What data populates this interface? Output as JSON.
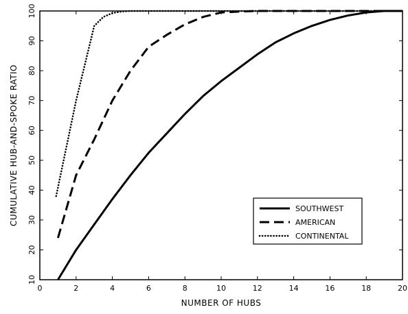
{
  "chart_data": {
    "type": "line",
    "title": "",
    "xlabel": "NUMBER OF HUBS",
    "ylabel": "CUMULATIVE HUB-AND-SPOKE RATIO",
    "xlim": [
      0,
      20
    ],
    "ylim": [
      10,
      100
    ],
    "xticks": [
      0,
      2,
      4,
      6,
      8,
      10,
      12,
      14,
      16,
      18,
      20
    ],
    "yticks": [
      10,
      20,
      30,
      40,
      50,
      60,
      70,
      80,
      90,
      100
    ],
    "grid": false,
    "legend_position": "bottom-right",
    "series": [
      {
        "name": "SOUTHWEST",
        "style": "solid",
        "x": [
          1,
          2,
          3,
          4,
          5,
          6,
          7,
          8,
          9,
          10,
          11,
          12,
          13,
          14,
          15,
          16,
          17,
          18,
          19,
          20
        ],
        "y": [
          10,
          20,
          28.5,
          37,
          45,
          52.5,
          59,
          65.5,
          71.5,
          76.5,
          81,
          85.5,
          89.5,
          92.5,
          95,
          97,
          98.5,
          99.5,
          100,
          100
        ]
      },
      {
        "name": "AMERICAN",
        "style": "dashed",
        "x": [
          1,
          2,
          3,
          4,
          5,
          6,
          7,
          8,
          9,
          10,
          11,
          12,
          14,
          16,
          18,
          20
        ],
        "y": [
          24,
          45,
          57,
          70,
          80,
          88,
          92,
          95.5,
          98,
          99.5,
          99.8,
          100,
          100,
          100,
          100,
          100
        ]
      },
      {
        "name": "CONTINENTAL",
        "style": "dotted",
        "x": [
          0.9,
          2,
          3,
          3.5,
          4,
          4.5,
          5,
          6,
          8,
          10,
          12,
          14,
          16,
          18,
          20
        ],
        "y": [
          38,
          70,
          95,
          98,
          99.3,
          99.8,
          100,
          100,
          100,
          100,
          100,
          100,
          100,
          100,
          100
        ]
      }
    ]
  }
}
